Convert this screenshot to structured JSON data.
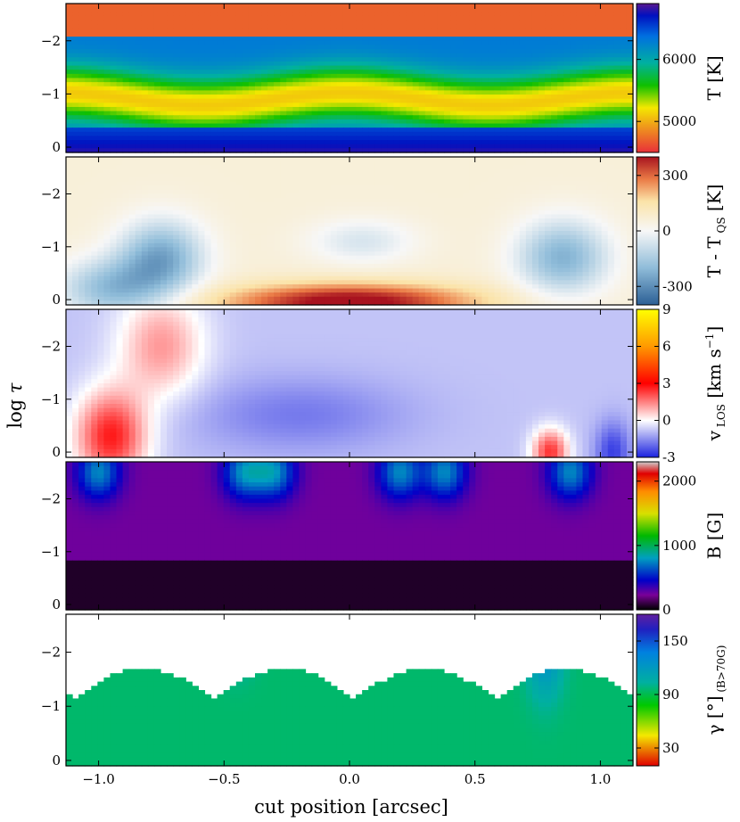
{
  "chart_data": {
    "type": "heatmap",
    "xlabel": "cut position [arcsec]",
    "ylabel": "log τ",
    "xlim": [
      -1.13,
      1.13
    ],
    "ylim": [
      0.1,
      -2.7
    ],
    "x_ticks": [
      -1.0,
      -0.5,
      0.0,
      0.5,
      1.0
    ],
    "x_tick_labels": [
      "−1.0",
      "−0.5",
      "0.0",
      "0.5",
      "1.0"
    ],
    "y_ticks": [
      -2,
      -1,
      0
    ],
    "y_tick_labels": [
      "−2",
      "−1",
      "0"
    ],
    "panels": [
      {
        "name": "temperature",
        "colorbar_label": "T [K]",
        "colorbar_sub": "",
        "colormap": "spectral",
        "vmin": 4500,
        "vmax": 6900,
        "colorbar_ticks": [
          5000,
          6000
        ],
        "colorbar_tick_labels": [
          "5000",
          "6000"
        ]
      },
      {
        "name": "temperature-difference",
        "colorbar_label": "T - T",
        "colorbar_sub": "QS",
        "colorbar_unit": "[K]",
        "colormap": "RdBu_r",
        "vmin": -400,
        "vmax": 400,
        "colorbar_ticks": [
          -300,
          0,
          300
        ],
        "colorbar_tick_labels": [
          "-300",
          "0",
          "300"
        ]
      },
      {
        "name": "los-velocity",
        "colorbar_label": "v",
        "colorbar_sub": "LOS",
        "colorbar_unit": "[km s",
        "colorbar_unit_sup": "−1",
        "colorbar_unit_end": "]",
        "colormap": "bwr-hot",
        "vmin": -3,
        "vmax": 9,
        "colorbar_ticks": [
          -3,
          0,
          3,
          6,
          9
        ],
        "colorbar_tick_labels": [
          "-3",
          "0",
          "3",
          "6",
          "9"
        ]
      },
      {
        "name": "magnetic-field",
        "colorbar_label": "B [G]",
        "colorbar_sub": "",
        "colormap": "nipy_spectral",
        "vmin": 0,
        "vmax": 2300,
        "colorbar_ticks": [
          0,
          1000,
          2000
        ],
        "colorbar_tick_labels": [
          "0",
          "1000",
          "2000"
        ]
      },
      {
        "name": "inclination",
        "colorbar_label": "γ [°]",
        "colorbar_sub": "(B>70G)",
        "colormap": "spectral",
        "vmin": 10,
        "vmax": 180,
        "colorbar_ticks": [
          30,
          90,
          150
        ],
        "colorbar_tick_labels": [
          "30",
          "90",
          "150"
        ]
      }
    ]
  }
}
